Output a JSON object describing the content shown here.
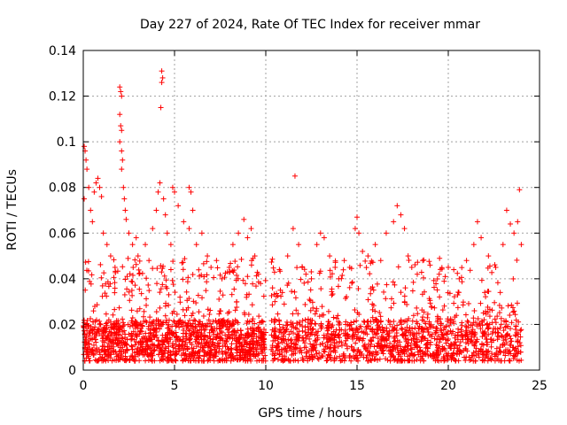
{
  "chart_data": {
    "type": "scatter",
    "title": "Day 227 of 2024, Rate Of TEC Index for receiver mmar",
    "xlabel": "GPS time / hours",
    "ylabel": "ROTI / TECUs",
    "xlim": [
      0,
      25
    ],
    "ylim": [
      0,
      0.14
    ],
    "x_ticks": [
      "0",
      "5",
      "10",
      "15",
      "20",
      "25"
    ],
    "y_ticks": [
      "0",
      "0.02",
      "0.04",
      "0.06",
      "0.08",
      "0.1",
      "0.12",
      "0.14"
    ],
    "grid": true,
    "marker": "+",
    "color": "#ff0000",
    "series": [
      {
        "name": "ROTI",
        "points": [
          [
            0.05,
            0.098
          ],
          [
            0.1,
            0.096
          ],
          [
            0.15,
            0.092
          ],
          [
            0.2,
            0.088
          ],
          [
            0.3,
            0.08
          ],
          [
            0.05,
            0.075
          ],
          [
            0.4,
            0.07
          ],
          [
            0.5,
            0.065
          ],
          [
            0.6,
            0.078
          ],
          [
            0.7,
            0.082
          ],
          [
            0.8,
            0.084
          ],
          [
            0.9,
            0.08
          ],
          [
            1.0,
            0.076
          ],
          [
            1.1,
            0.06
          ],
          [
            1.3,
            0.055
          ],
          [
            1.5,
            0.05
          ],
          [
            2.0,
            0.124
          ],
          [
            2.05,
            0.122
          ],
          [
            2.1,
            0.12
          ],
          [
            2.0,
            0.112
          ],
          [
            2.05,
            0.107
          ],
          [
            2.1,
            0.105
          ],
          [
            2.0,
            0.1
          ],
          [
            2.1,
            0.096
          ],
          [
            2.15,
            0.092
          ],
          [
            2.1,
            0.088
          ],
          [
            2.2,
            0.08
          ],
          [
            2.25,
            0.075
          ],
          [
            2.3,
            0.07
          ],
          [
            2.35,
            0.066
          ],
          [
            2.5,
            0.06
          ],
          [
            2.7,
            0.055
          ],
          [
            2.9,
            0.058
          ],
          [
            3.0,
            0.05
          ],
          [
            3.4,
            0.055
          ],
          [
            3.6,
            0.048
          ],
          [
            3.8,
            0.062
          ],
          [
            4.0,
            0.07
          ],
          [
            4.1,
            0.078
          ],
          [
            4.2,
            0.082
          ],
          [
            4.3,
            0.131
          ],
          [
            4.35,
            0.128
          ],
          [
            4.3,
            0.126
          ],
          [
            4.25,
            0.115
          ],
          [
            4.4,
            0.075
          ],
          [
            4.5,
            0.068
          ],
          [
            4.6,
            0.06
          ],
          [
            4.8,
            0.055
          ],
          [
            4.9,
            0.08
          ],
          [
            5.0,
            0.078
          ],
          [
            5.2,
            0.072
          ],
          [
            5.5,
            0.065
          ],
          [
            5.8,
            0.062
          ],
          [
            5.8,
            0.08
          ],
          [
            5.9,
            0.078
          ],
          [
            6.0,
            0.07
          ],
          [
            6.2,
            0.055
          ],
          [
            6.5,
            0.06
          ],
          [
            6.8,
            0.05
          ],
          [
            7.0,
            0.045
          ],
          [
            7.3,
            0.048
          ],
          [
            7.6,
            0.04
          ],
          [
            8.0,
            0.045
          ],
          [
            8.2,
            0.055
          ],
          [
            8.5,
            0.06
          ],
          [
            8.8,
            0.066
          ],
          [
            9.0,
            0.058
          ],
          [
            9.2,
            0.062
          ],
          [
            9.4,
            0.05
          ],
          [
            9.6,
            0.042
          ],
          [
            10.5,
            0.03
          ],
          [
            10.8,
            0.035
          ],
          [
            11.2,
            0.05
          ],
          [
            11.5,
            0.062
          ],
          [
            11.6,
            0.085
          ],
          [
            11.8,
            0.055
          ],
          [
            12.0,
            0.045
          ],
          [
            12.2,
            0.042
          ],
          [
            12.5,
            0.04
          ],
          [
            12.8,
            0.055
          ],
          [
            13.0,
            0.06
          ],
          [
            13.2,
            0.058
          ],
          [
            13.5,
            0.05
          ],
          [
            13.8,
            0.045
          ],
          [
            14.0,
            0.04
          ],
          [
            14.3,
            0.048
          ],
          [
            14.6,
            0.045
          ],
          [
            14.9,
            0.062
          ],
          [
            15.0,
            0.067
          ],
          [
            15.1,
            0.06
          ],
          [
            15.3,
            0.052
          ],
          [
            15.6,
            0.05
          ],
          [
            16.0,
            0.055
          ],
          [
            16.3,
            0.048
          ],
          [
            16.6,
            0.06
          ],
          [
            17.0,
            0.065
          ],
          [
            17.2,
            0.072
          ],
          [
            17.4,
            0.068
          ],
          [
            17.6,
            0.062
          ],
          [
            17.8,
            0.05
          ],
          [
            18.0,
            0.045
          ],
          [
            18.3,
            0.042
          ],
          [
            18.6,
            0.048
          ],
          [
            19.0,
            0.046
          ],
          [
            19.5,
            0.042
          ],
          [
            20.0,
            0.045
          ],
          [
            20.3,
            0.044
          ],
          [
            20.6,
            0.04
          ],
          [
            21.0,
            0.048
          ],
          [
            21.4,
            0.055
          ],
          [
            21.6,
            0.065
          ],
          [
            21.8,
            0.058
          ],
          [
            22.2,
            0.05
          ],
          [
            22.6,
            0.045
          ],
          [
            23.0,
            0.055
          ],
          [
            23.2,
            0.07
          ],
          [
            23.4,
            0.064
          ],
          [
            23.6,
            0.06
          ],
          [
            23.8,
            0.065
          ],
          [
            23.9,
            0.079
          ],
          [
            24.0,
            0.055
          ]
        ]
      }
    ]
  }
}
